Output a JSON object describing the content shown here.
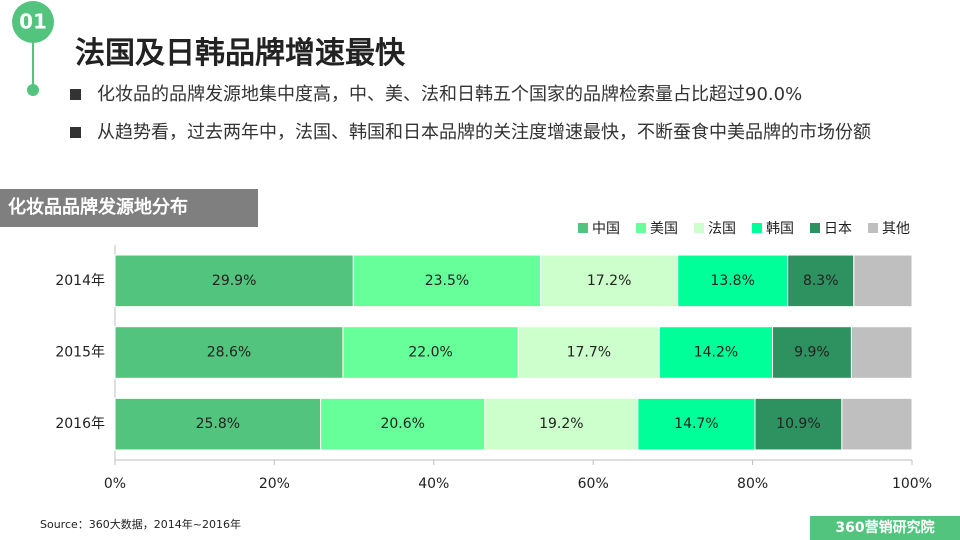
{
  "header": {
    "number": "01",
    "title": "法国及日韩品牌增速最快"
  },
  "bullets": [
    "化妆品的品牌发源地集中度高，中、美、法和日韩五个国家的品牌检索量占比超过90.0%",
    "从趋势看，过去两年中，法国、韩国和日本品牌的关注度增速最快，不断蚕食中美品牌的市场份额"
  ],
  "section_label": "化妆品品牌发源地分布",
  "chart_data": {
    "type": "bar",
    "stacked": true,
    "horizontal": true,
    "categories": [
      "2014年",
      "2015年",
      "2016年"
    ],
    "series": [
      {
        "name": "中国",
        "color": "#52c47e",
        "values": [
          29.9,
          28.6,
          25.8
        ],
        "value_labels": [
          "29.9%",
          "28.6%",
          "25.8%"
        ]
      },
      {
        "name": "美国",
        "color": "#66ff99",
        "values": [
          23.5,
          22.0,
          20.6
        ],
        "value_labels": [
          "23.5%",
          "22.0%",
          "20.6%"
        ]
      },
      {
        "name": "法国",
        "color": "#ccffcc",
        "values": [
          17.2,
          17.7,
          19.2
        ],
        "value_labels": [
          "17.2%",
          "17.7%",
          "19.2%"
        ]
      },
      {
        "name": "韩国",
        "color": "#00ff99",
        "values": [
          13.8,
          14.2,
          14.7
        ],
        "value_labels": [
          "13.8%",
          "14.2%",
          "14.7%"
        ]
      },
      {
        "name": "日本",
        "color": "#2e9160",
        "values": [
          8.3,
          9.9,
          10.9
        ],
        "value_labels": [
          "8.3%",
          "9.9%",
          "10.9%"
        ]
      },
      {
        "name": "其他",
        "color": "#bfbfbf",
        "values": [
          7.3,
          7.6,
          8.8
        ]
      }
    ],
    "xlim": [
      0,
      100
    ],
    "xticks": [
      {
        "value": 0,
        "label": "0%"
      },
      {
        "value": 20,
        "label": "20%"
      },
      {
        "value": 40,
        "label": "40%"
      },
      {
        "value": 60,
        "label": "60%"
      },
      {
        "value": 80,
        "label": "80%"
      },
      {
        "value": 100,
        "label": "100%"
      }
    ],
    "legend": "top-right"
  },
  "source": "Source：360大数据，2014年~2016年",
  "logo": "360营销研究院"
}
